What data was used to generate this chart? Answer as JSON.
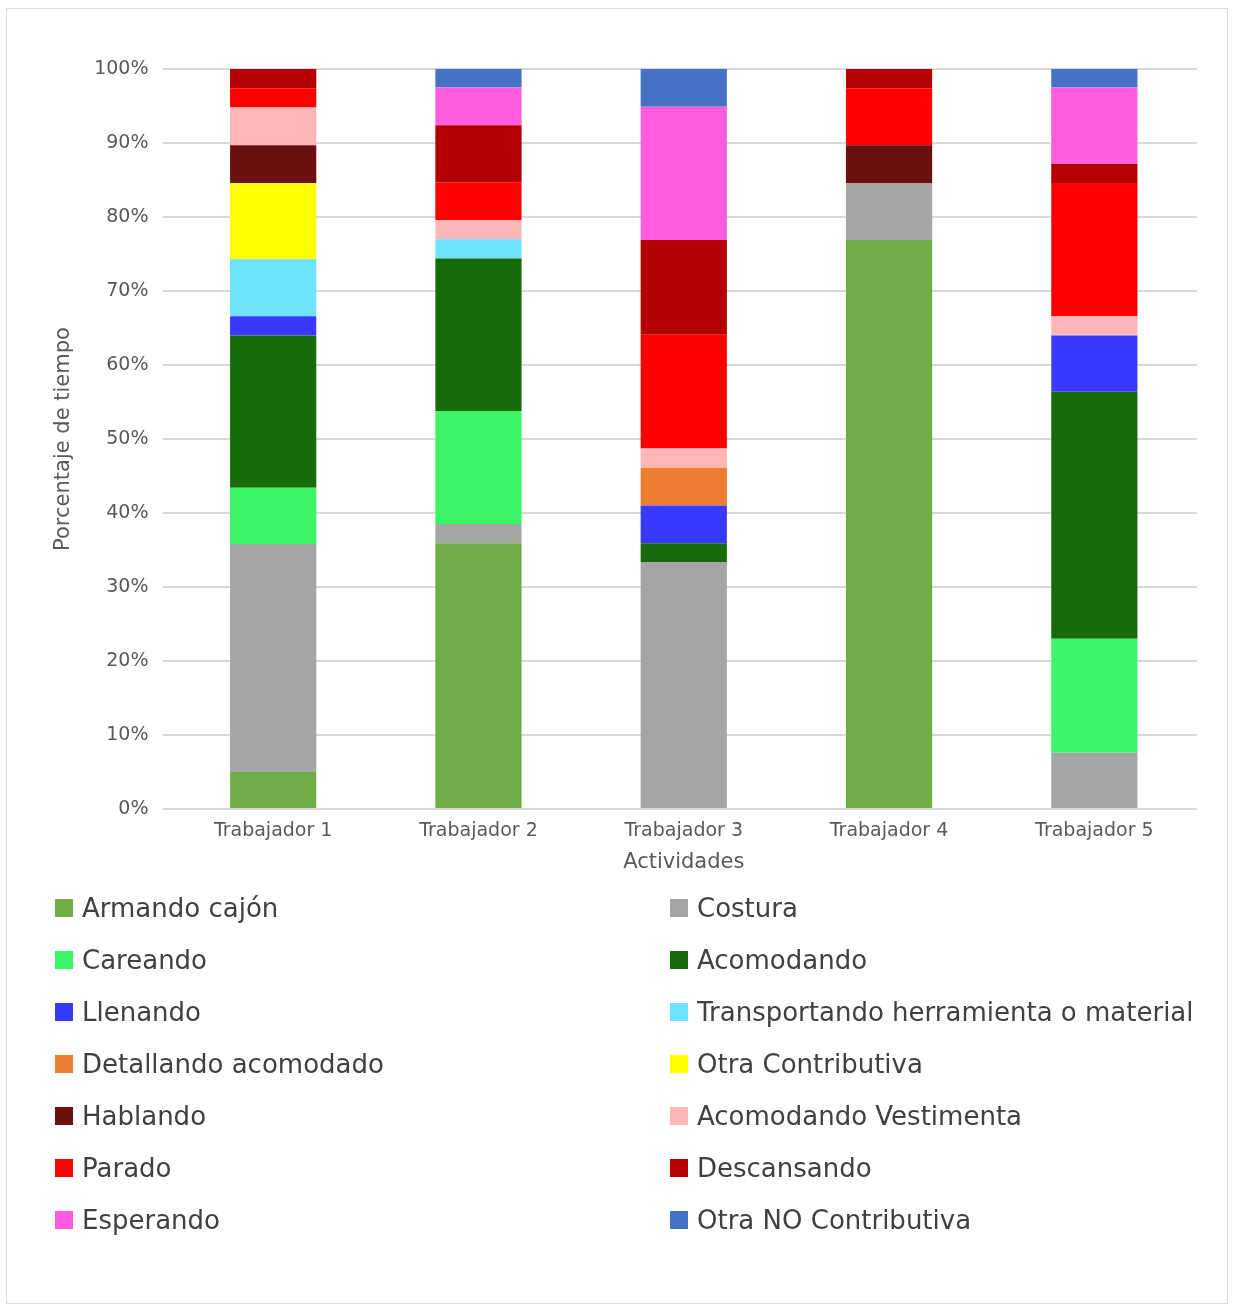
{
  "chart_data": {
    "type": "bar",
    "stacked": true,
    "xlabel": "Actividades",
    "ylabel": "Porcentaje de tiempo",
    "categories": [
      "Trabajador 1",
      "Trabajador 2",
      "Trabajador 3",
      "Trabajador 4",
      "Trabajador 5"
    ],
    "ylim": [
      0,
      100
    ],
    "yticks": [
      {
        "value": 0,
        "label": "0%"
      },
      {
        "value": 10,
        "label": "10%"
      },
      {
        "value": 20,
        "label": "20%"
      },
      {
        "value": 30,
        "label": "30%"
      },
      {
        "value": 40,
        "label": "40%"
      },
      {
        "value": 50,
        "label": "50%"
      },
      {
        "value": 60,
        "label": "60%"
      },
      {
        "value": 70,
        "label": "70%"
      },
      {
        "value": 80,
        "label": "80%"
      },
      {
        "value": 90,
        "label": "90%"
      },
      {
        "value": 100,
        "label": "100%"
      }
    ],
    "grid": "y",
    "legend": "bottom",
    "series": [
      {
        "name": "Armando cajón",
        "color": "#70ad47",
        "values": [
          5,
          35.9,
          null,
          76.9,
          null
        ]
      },
      {
        "name": "Costura",
        "color": "#a5a5a5",
        "values": [
          30.8,
          2.6,
          33.3,
          7.7,
          7.6
        ]
      },
      {
        "name": "Careando",
        "color": "#3cf564",
        "values": [
          7.6,
          15.3,
          null,
          null,
          15.4
        ]
      },
      {
        "name": "Acomodando",
        "color": "#176b0b",
        "values": [
          20.6,
          20.6,
          2.6,
          null,
          33.4
        ]
      },
      {
        "name": "Llenando",
        "color": "#3a3aff",
        "values": [
          2.6,
          null,
          5.1,
          null,
          7.6
        ]
      },
      {
        "name": "Transportando herramienta o material",
        "color": "#6fe3fb",
        "values": [
          7.7,
          2.6,
          null,
          null,
          null
        ]
      },
      {
        "name": "Detallando acomodado",
        "color": "#ed7d31",
        "values": [
          null,
          null,
          5.1,
          null,
          null
        ]
      },
      {
        "name": "Otra Contributiva",
        "color": "#ffff00",
        "values": [
          10.3,
          null,
          null,
          null,
          null
        ]
      },
      {
        "name": "Hablando",
        "color": "#6b1010",
        "values": [
          5.1,
          null,
          null,
          5.1,
          null
        ]
      },
      {
        "name": "Acomodando Vestimenta",
        "color": "#ffb6b6",
        "values": [
          5.1,
          2.6,
          2.6,
          null,
          2.6
        ]
      },
      {
        "name": "Parado",
        "color": "#ff0000",
        "values": [
          2.6,
          5.1,
          15.4,
          7.7,
          18
        ]
      },
      {
        "name": "Descansando",
        "color": "#b20000",
        "values": [
          2.6,
          7.7,
          12.8,
          2.6,
          2.6
        ]
      },
      {
        "name": "Esperando",
        "color": "#ff5ce1",
        "values": [
          null,
          5.1,
          18,
          null,
          10.3
        ]
      },
      {
        "name": "Otra NO Contributiva",
        "color": "#4472c4",
        "values": [
          null,
          2.6,
          5.1,
          null,
          2.6
        ]
      }
    ]
  }
}
